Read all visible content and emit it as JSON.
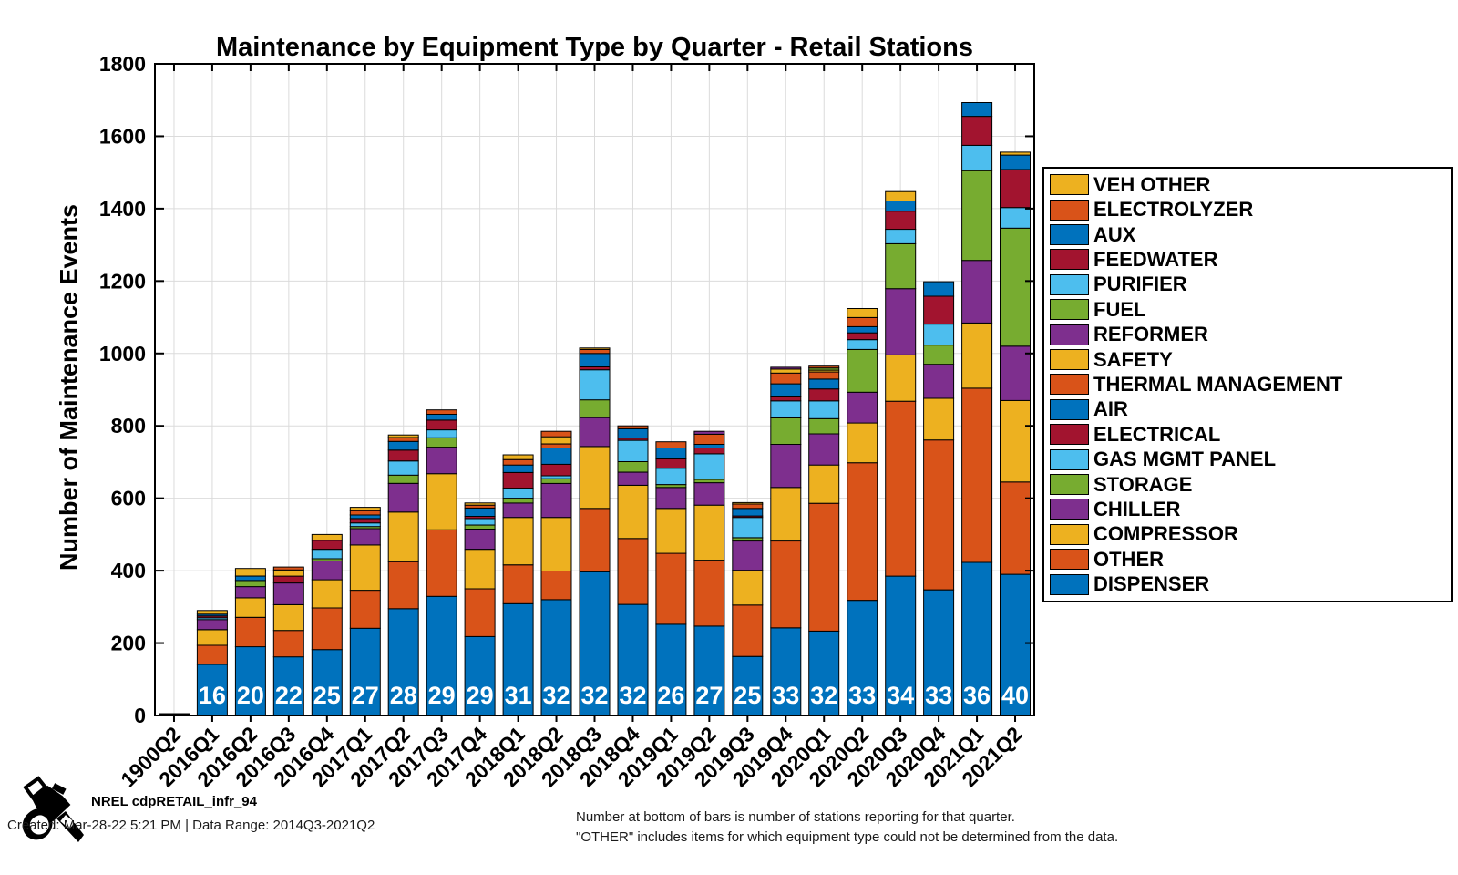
{
  "chart_data": {
    "type": "bar",
    "stacked": true,
    "title": "Maintenance by Equipment Type by Quarter - Retail Stations",
    "ylabel": "Number of Maintenance Events",
    "xlabel": "",
    "ylim": [
      0,
      1800
    ],
    "ytick_step": 200,
    "grid": true,
    "legend_position": "right-outside",
    "categories": [
      "1900Q2",
      "2016Q1",
      "2016Q2",
      "2016Q3",
      "2016Q4",
      "2017Q1",
      "2017Q2",
      "2017Q3",
      "2017Q4",
      "2018Q1",
      "2018Q2",
      "2018Q3",
      "2018Q4",
      "2019Q1",
      "2019Q2",
      "2019Q3",
      "2019Q4",
      "2020Q1",
      "2020Q2",
      "2020Q3",
      "2020Q4",
      "2021Q1",
      "2021Q2"
    ],
    "station_counts": [
      "",
      "16",
      "20",
      "22",
      "25",
      "27",
      "28",
      "29",
      "29",
      "31",
      "32",
      "32",
      "32",
      "26",
      "27",
      "25",
      "33",
      "32",
      "33",
      "34",
      "33",
      "36",
      "40"
    ],
    "series": [
      {
        "name": "DISPENSER",
        "color": "#0072BD",
        "values": [
          3,
          141,
          190,
          162,
          182,
          241,
          295,
          329,
          218,
          309,
          320,
          397,
          307,
          252,
          247,
          163,
          242,
          233,
          318,
          385,
          347,
          423,
          390
        ]
      },
      {
        "name": "OTHER",
        "color": "#D95319",
        "values": [
          2,
          53,
          81,
          73,
          115,
          105,
          130,
          184,
          132,
          107,
          79,
          175,
          182,
          196,
          182,
          142,
          240,
          353,
          380,
          483,
          414,
          481,
          255
        ]
      },
      {
        "name": "COMPRESSOR",
        "color": "#EDB120",
        "values": [
          0,
          43,
          54,
          71,
          78,
          125,
          137,
          155,
          109,
          131,
          148,
          171,
          147,
          124,
          152,
          96,
          148,
          106,
          110,
          128,
          115,
          180,
          225
        ]
      },
      {
        "name": "CHILLER",
        "color": "#7E2F8E",
        "values": [
          0,
          28,
          31,
          60,
          52,
          45,
          79,
          73,
          56,
          40,
          94,
          80,
          36,
          58,
          62,
          81,
          119,
          86,
          85,
          183,
          94,
          173,
          150
        ]
      },
      {
        "name": "STORAGE",
        "color": "#77AC30",
        "values": [
          0,
          0,
          17,
          0,
          6,
          6,
          23,
          26,
          11,
          13,
          13,
          49,
          29,
          8,
          9,
          9,
          73,
          42,
          118,
          124,
          53,
          248,
          326
        ]
      },
      {
        "name": "GAS MGMT PANEL",
        "color": "#4DBEEE",
        "values": [
          0,
          5,
          0,
          0,
          26,
          10,
          39,
          22,
          18,
          28,
          8,
          83,
          59,
          45,
          71,
          56,
          47,
          49,
          27,
          40,
          58,
          70,
          57
        ]
      },
      {
        "name": "ELECTRICAL",
        "color": "#A2142F",
        "values": [
          0,
          5,
          0,
          19,
          25,
          12,
          30,
          27,
          6,
          43,
          32,
          8,
          6,
          26,
          16,
          4,
          11,
          33,
          19,
          50,
          77,
          80,
          105
        ]
      },
      {
        "name": "AIR",
        "color": "#0072BD",
        "values": [
          0,
          5,
          12,
          0,
          0,
          10,
          24,
          16,
          23,
          21,
          45,
          37,
          26,
          30,
          10,
          21,
          36,
          27,
          17,
          28,
          40,
          38,
          40
        ]
      },
      {
        "name": "THERMAL MANAGEMENT",
        "color": "#D95319",
        "values": [
          0,
          0,
          0,
          0,
          0,
          12,
          11,
          12,
          8,
          15,
          11,
          11,
          8,
          17,
          28,
          12,
          30,
          20,
          25,
          0,
          0,
          0,
          0
        ]
      },
      {
        "name": "SAFETY",
        "color": "#EDB120",
        "values": [
          0,
          10,
          21,
          17,
          16,
          9,
          7,
          0,
          6,
          13,
          20,
          4,
          0,
          0,
          0,
          4,
          11,
          5,
          25,
          26,
          0,
          0,
          8
        ]
      },
      {
        "name": "REFORMER",
        "color": "#7E2F8E",
        "values": [
          0,
          0,
          0,
          0,
          0,
          0,
          0,
          0,
          0,
          0,
          0,
          0,
          0,
          0,
          8,
          0,
          5,
          0,
          0,
          0,
          0,
          0,
          0
        ]
      },
      {
        "name": "FUEL",
        "color": "#77AC30",
        "values": [
          0,
          0,
          0,
          0,
          0,
          0,
          0,
          0,
          0,
          0,
          0,
          0,
          0,
          0,
          0,
          0,
          0,
          6,
          0,
          0,
          0,
          0,
          0
        ]
      },
      {
        "name": "PURIFIER",
        "color": "#4DBEEE",
        "values": [
          0,
          0,
          0,
          0,
          0,
          0,
          0,
          0,
          0,
          0,
          0,
          0,
          0,
          0,
          0,
          0,
          0,
          0,
          0,
          0,
          0,
          0,
          0
        ]
      },
      {
        "name": "FEEDWATER",
        "color": "#A2142F",
        "values": [
          0,
          0,
          0,
          0,
          0,
          0,
          0,
          0,
          0,
          0,
          0,
          0,
          0,
          0,
          0,
          0,
          0,
          0,
          0,
          0,
          0,
          0,
          0
        ]
      },
      {
        "name": "AUX",
        "color": "#0072BD",
        "values": [
          0,
          0,
          0,
          0,
          0,
          0,
          0,
          0,
          0,
          0,
          0,
          0,
          0,
          0,
          0,
          0,
          0,
          0,
          0,
          0,
          0,
          0,
          0
        ]
      },
      {
        "name": "ELECTROLYZER",
        "color": "#D95319",
        "values": [
          0,
          0,
          0,
          8,
          0,
          0,
          0,
          0,
          0,
          0,
          15,
          0,
          0,
          0,
          0,
          0,
          0,
          5,
          0,
          0,
          0,
          0,
          0
        ]
      },
      {
        "name": "VEH OTHER",
        "color": "#EDB120",
        "values": [
          0,
          0,
          0,
          0,
          0,
          0,
          0,
          0,
          0,
          0,
          0,
          0,
          0,
          0,
          0,
          0,
          0,
          0,
          0,
          0,
          0,
          0,
          0
        ]
      }
    ],
    "colors": {
      "axis": "#000000",
      "grid": "#DBDBDB",
      "bar_edge": "#000000",
      "count_label": "#FFFFFF"
    }
  },
  "footer": {
    "brand": "NREL cdpRETAIL_infr_94",
    "created": "Created: Mar-28-22  5:21 PM | Data Range: 2014Q3-2021Q2",
    "note_lines": [
      "Number at bottom of bars is number of stations reporting for that quarter.",
      "\"OTHER\" includes items for which equipment type could not be determined from the data."
    ]
  },
  "icons": {
    "pump": "fuel-nozzle-icon"
  }
}
